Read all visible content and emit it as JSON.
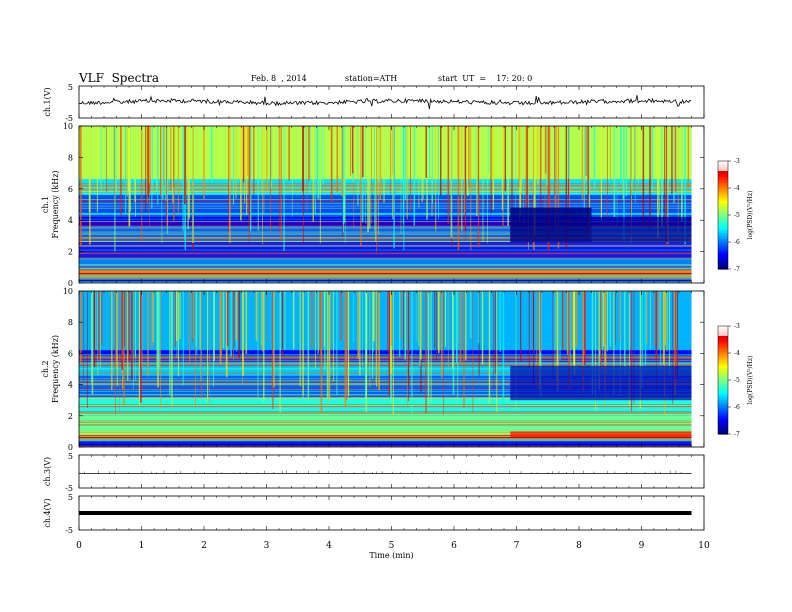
{
  "header": {
    "title": "VLF  Spectra",
    "date": "Feb. 8  , 2014",
    "station": "station=ATH",
    "start": "start  UT  =    17: 20: 0"
  },
  "chart_data": [
    {
      "type": "line",
      "panel": "ch1-waveform",
      "ylabel": "ch.1(V)",
      "yticks": [
        "5",
        "-5"
      ],
      "ylim": [
        -5,
        5
      ],
      "xlim": [
        0,
        10
      ],
      "x_end": 9.8,
      "series": [
        {
          "approx_level": 0,
          "color": "#000000"
        }
      ]
    },
    {
      "type": "heatmap",
      "panel": "ch1-spectrogram",
      "ylabel_channel": "ch.1",
      "ylabel": "Frequency  (kHz)",
      "yticks": [
        "0",
        "2",
        "4",
        "6",
        "8",
        "10"
      ],
      "ylim": [
        0,
        10
      ],
      "xlim": [
        0,
        10
      ],
      "x_end": 9.8,
      "colorbar": {
        "label": "log(PSD)(V²/Hz)",
        "ticks": [
          "-3",
          "-4",
          "-5",
          "-6",
          "-7"
        ],
        "range": [
          -7,
          -3
        ]
      }
    },
    {
      "type": "heatmap",
      "panel": "ch2-spectrogram",
      "ylabel_channel": "ch.2",
      "ylabel": "Frequency  (kHz)",
      "yticks": [
        "0",
        "2",
        "4",
        "6",
        "8",
        "10"
      ],
      "ylim": [
        0,
        10
      ],
      "xlim": [
        0,
        10
      ],
      "x_end": 9.8,
      "colorbar": {
        "label": "log(PSD)(V²/Hz)",
        "ticks": [
          "-3",
          "-4",
          "-5",
          "-6",
          "-7"
        ],
        "range": [
          -7,
          -3
        ]
      }
    },
    {
      "type": "line",
      "panel": "ch3-waveform",
      "ylabel": "ch.3(V)",
      "yticks": [
        "5",
        "-5"
      ],
      "ylim": [
        -5,
        5
      ],
      "xlim": [
        0,
        10
      ],
      "x_end": 9.8
    },
    {
      "type": "line",
      "panel": "ch4-waveform",
      "ylabel": "ch.4(V)",
      "yticks": [
        "5",
        "-5"
      ],
      "ylim": [
        -5,
        5
      ],
      "xlim": [
        0,
        10
      ],
      "x_end": 9.8
    }
  ],
  "xaxis": {
    "label": "Time  (min)",
    "ticks": [
      "0",
      "1",
      "2",
      "3",
      "4",
      "5",
      "6",
      "7",
      "8",
      "9",
      "10"
    ]
  }
}
